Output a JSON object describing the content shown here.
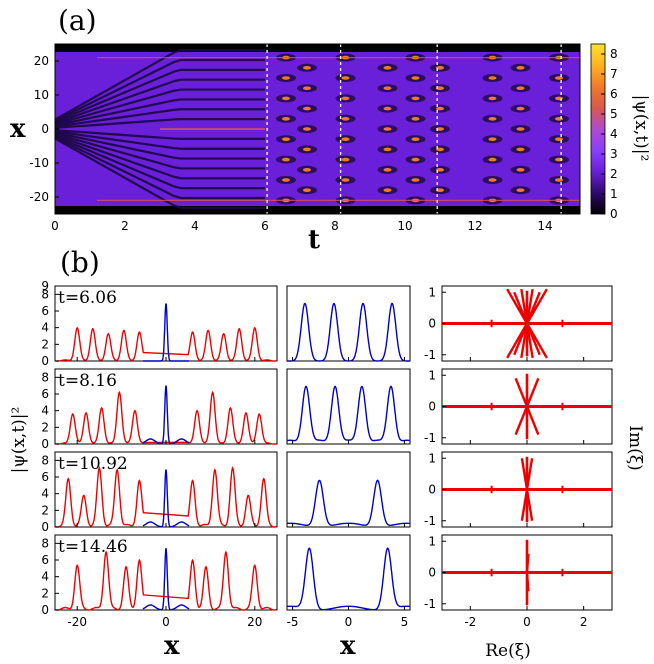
{
  "chart_data": [
    {
      "panel": "(a)",
      "type": "heatmap",
      "xlabel": "t",
      "ylabel": "x",
      "xlim": [
        0,
        15
      ],
      "ylim": [
        -25,
        25
      ],
      "xticks": [
        "0",
        "2",
        "4",
        "6",
        "8",
        "10",
        "12",
        "14"
      ],
      "yticks": [
        "-20",
        "-10",
        "0",
        "10",
        "20"
      ],
      "colorbar": {
        "label": "|ψ(x,t)|²",
        "range": [
          0,
          8.5
        ],
        "ticks": [
          "0",
          "1",
          "2",
          "3",
          "4",
          "5",
          "6",
          "7",
          "8"
        ],
        "colors": [
          "#000000",
          "#2d0a6b",
          "#6a1fd8",
          "#8a3dff",
          "#b04ad0",
          "#d8574f",
          "#f07a2a",
          "#ffb020",
          "#ffe030"
        ]
      },
      "marker_lines_t": [
        6.06,
        8.16,
        10.92,
        14.46
      ]
    },
    {
      "panel": "(b)",
      "type": "line",
      "ylabel": "|ψ(x,t)|²",
      "xlabel": "x",
      "rows": [
        {
          "label": "t=6.06",
          "peaks_red": [
            -20,
            -16.5,
            -13,
            -9.5,
            -6,
            -3,
            3,
            6,
            9.5,
            13,
            16.5,
            20
          ],
          "peak_heights_red": [
            3.9,
            3.8,
            3.2,
            3.6,
            3.4,
            3.9,
            3.9,
            3.4,
            3.6,
            3.2,
            3.8,
            3.9
          ],
          "center_height": 6.9,
          "zoom_peaks": [
            -3.9,
            -1.3,
            1.3,
            3.9
          ],
          "zoom_height": 6.9
        },
        {
          "label": "t=8.16",
          "peaks_red": [
            -21,
            -18,
            -14.5,
            -10.5,
            -7,
            -3.5,
            3.5,
            7,
            10.5,
            14.5,
            18,
            21
          ],
          "peak_heights_red": [
            3.6,
            3.7,
            4.3,
            6.2,
            4.0,
            3.3,
            3.3,
            4.0,
            6.2,
            4.3,
            3.7,
            3.6
          ],
          "center_height": 7.0,
          "zoom_peaks": [
            -3.8,
            -1.2,
            1.2,
            3.8
          ],
          "zoom_height": 6.9
        },
        {
          "label": "t=10.92",
          "peaks_red": [
            -22,
            -18.5,
            -15,
            -11,
            -6,
            6,
            11,
            15,
            18.5,
            22
          ],
          "peak_heights_red": [
            5.6,
            3.6,
            6.9,
            6.8,
            5.4,
            5.4,
            6.8,
            6.9,
            3.6,
            5.6
          ],
          "center_height": 6.9,
          "zoom_peaks": [
            -2.6,
            2.6
          ],
          "zoom_height": 5.6
        },
        {
          "label": "t=14.46",
          "peaks_red": [
            -20,
            -13.5,
            -9,
            -6,
            6,
            9,
            13.5,
            20
          ],
          "peak_heights_red": [
            5.2,
            6.9,
            4.9,
            5.8,
            5.8,
            4.9,
            6.9,
            5.2
          ],
          "center_height": 7.4,
          "zoom_peaks": [
            -3.5,
            3.5
          ],
          "zoom_height": 7.3
        }
      ],
      "left_xlim": [
        -25,
        25
      ],
      "left_xticks": [
        "-20",
        "0",
        "20"
      ],
      "left_ylim": [
        0,
        9
      ],
      "left_yticks": [
        "0",
        "2",
        "4",
        "6",
        "8"
      ],
      "left_top_tick": "9",
      "mid_xlim": [
        -5.5,
        5.5
      ],
      "mid_xticks": [
        "-5",
        "0",
        "5"
      ],
      "colors": {
        "full": "#ee0000",
        "zoom": "#0000cc"
      }
    },
    {
      "panel": "spectrum",
      "type": "scatter",
      "xlabel": "Re(ξ)",
      "ylabel": "Im(ξ)",
      "xlim": [
        -3,
        3
      ],
      "ylim": [
        -1.2,
        1.2
      ],
      "xticks": [
        "-2",
        "0",
        "2"
      ],
      "yticks": [
        "-1",
        "0",
        "1"
      ],
      "color": "#ee0000"
    }
  ]
}
